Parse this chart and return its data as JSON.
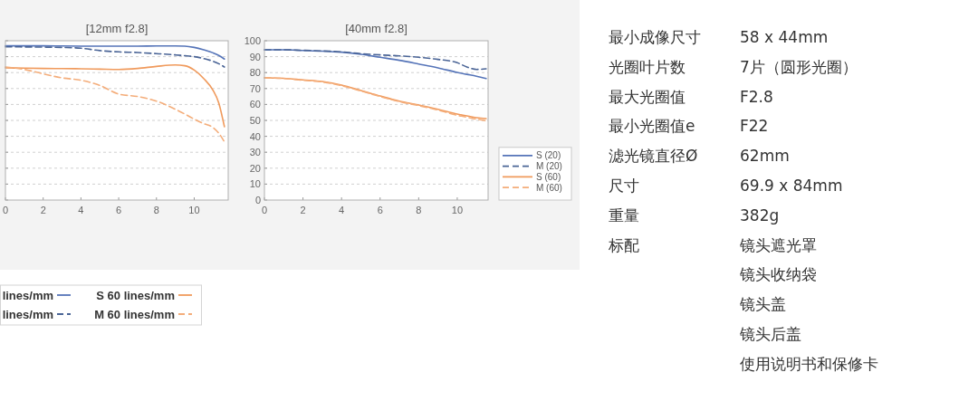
{
  "chart_data": [
    {
      "type": "line",
      "title": "[12mm f2.8]",
      "x": [
        0,
        1,
        2,
        3,
        4,
        5,
        6,
        7,
        8,
        9,
        9.5,
        10,
        10.5,
        11,
        11.3,
        11.6
      ],
      "xlim": [
        0,
        11.8
      ],
      "xticks": [
        0,
        2,
        4,
        6,
        8,
        10
      ],
      "ylim": [
        0,
        100
      ],
      "yticks": [
        0,
        10,
        20,
        30,
        40,
        50,
        60,
        70,
        80,
        90,
        100
      ],
      "tick_labels": "x",
      "grid": "y",
      "legend": "bottom",
      "series": [
        {
          "name": "lines/mm",
          "color": "#5574b8",
          "line_style": "solid",
          "values": [
            96.8,
            96.8,
            96.8,
            96.7,
            96.6,
            96.6,
            96.6,
            96.6,
            96.7,
            96.7,
            96.6,
            95.8,
            94.3,
            92.4,
            90.8,
            88.5
          ]
        },
        {
          "name": "lines/mm",
          "color": "#4a6496",
          "line_style": "dashed",
          "values": [
            96.2,
            96.1,
            96,
            95.8,
            95.3,
            93.8,
            93,
            92.6,
            91.9,
            91.1,
            90.6,
            90,
            88.8,
            87.1,
            85.6,
            83.5
          ]
        },
        {
          "name": "S 60 lines/mm",
          "color": "#f09a5c",
          "line_style": "solid",
          "values": [
            83,
            82.8,
            82.6,
            82.5,
            82.4,
            82.2,
            82,
            82.6,
            83.9,
            84.8,
            84.3,
            81.6,
            76.3,
            68.8,
            61,
            46
          ]
        },
        {
          "name": "M 60 lines/mm",
          "color": "#f4ad7a",
          "line_style": "dashed",
          "values": [
            83.5,
            82,
            79.2,
            76.7,
            75.2,
            72,
            66.5,
            65,
            62.1,
            57,
            54,
            50.8,
            48,
            45.5,
            42,
            36.5
          ]
        }
      ]
    },
    {
      "type": "line",
      "title": "[40mm f2.8]",
      "x": [
        0,
        1,
        2,
        3,
        4,
        5,
        6,
        7,
        8,
        9,
        10,
        10.5,
        11,
        11.5
      ],
      "xlim": [
        0,
        11.6
      ],
      "xticks": [
        0,
        2,
        4,
        6,
        8,
        10
      ],
      "ylim": [
        0,
        100
      ],
      "yticks": [
        0,
        10,
        20,
        30,
        40,
        50,
        60,
        70,
        80,
        90,
        100
      ],
      "grid": "y",
      "legend": "right",
      "series": [
        {
          "name": "S (20)",
          "color": "#5574b8",
          "line_style": "solid",
          "values": [
            94.3,
            94.3,
            93.9,
            93.5,
            92.8,
            91.5,
            89.6,
            87.7,
            85.4,
            83,
            80.1,
            78.9,
            77.7,
            76.3
          ]
        },
        {
          "name": "M (20)",
          "color": "#4a6496",
          "line_style": "dashed",
          "values": [
            94.3,
            94.3,
            94,
            93.6,
            93,
            91.9,
            91.1,
            90.5,
            89.6,
            88.3,
            86.2,
            83.5,
            82,
            82.4
          ]
        },
        {
          "name": "S (60)",
          "color": "#f09a5c",
          "line_style": "solid",
          "values": [
            76.7,
            76.4,
            75.4,
            74.4,
            72.2,
            68.8,
            65.3,
            62.1,
            59.7,
            57,
            54,
            52.8,
            51.7,
            51.1
          ]
        },
        {
          "name": "M (60)",
          "color": "#f4ad7a",
          "line_style": "dashed",
          "values": [
            76.7,
            76.3,
            75.2,
            74.1,
            71.8,
            68.5,
            65,
            61.8,
            59.3,
            56.5,
            53.2,
            52,
            50.8,
            49.8
          ]
        }
      ]
    },
    {
      "type": "other",
      "categories": [
        "最小成像尺寸",
        "光圈叶片数",
        "最大光圈值",
        "最小光圈值e",
        "滤光镜直径Ø",
        "尺寸",
        "重量",
        "标配"
      ],
      "annotations": [
        "58 x 44mm",
        "7片（圆形光圈）",
        "F2.8",
        "F22",
        "62mm",
        "69.9 x 84mm",
        "382g",
        "镜头遮光罩",
        "镜头收纳袋",
        "镜头盖",
        "镜头后盖",
        "使用说明书和保修卡"
      ]
    }
  ]
}
